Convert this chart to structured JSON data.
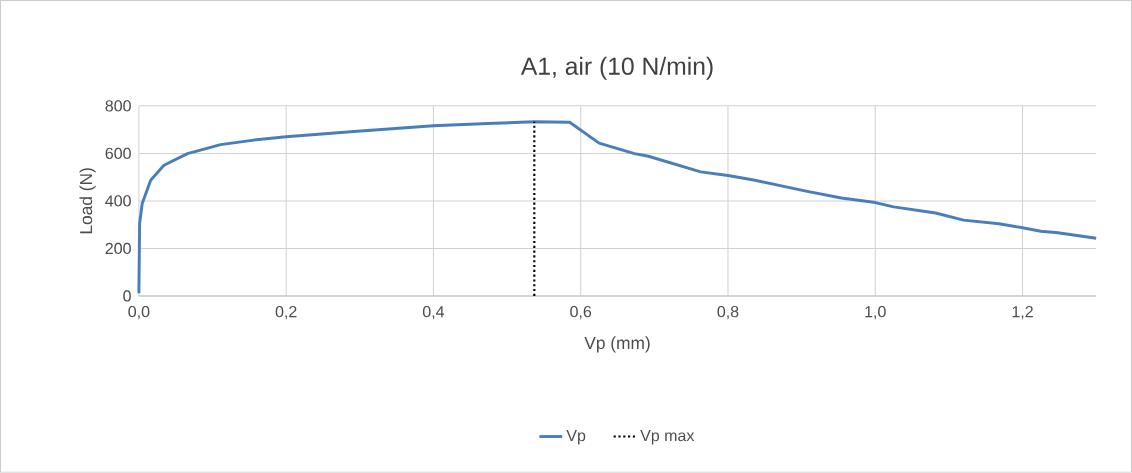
{
  "chart_data": {
    "type": "line",
    "title": "A1, air (10 N/min)",
    "xlabel": "Vp (mm)",
    "ylabel": "Load (N)",
    "xlim": [
      0,
      1.3
    ],
    "ylim": [
      0,
      800
    ],
    "xticks": [
      {
        "value": 0,
        "label": "0,0"
      },
      {
        "value": 0.2,
        "label": "0,2"
      },
      {
        "value": 0.4,
        "label": "0,4"
      },
      {
        "value": 0.6,
        "label": "0,6"
      },
      {
        "value": 0.8,
        "label": "0,8"
      },
      {
        "value": 1.0,
        "label": "1,0"
      },
      {
        "value": 1.2,
        "label": "1,2"
      }
    ],
    "yticks": [
      0,
      200,
      400,
      600,
      800
    ],
    "grid": true,
    "legend": "bottom",
    "marker": "none",
    "series": [
      {
        "name": "Vp",
        "color": "#4a7ebb",
        "line_style": "solid",
        "x": [
          0,
          0.001,
          0.0045,
          0.016,
          0.034,
          0.066,
          0.111,
          0.156,
          0.2,
          0.292,
          0.4,
          0.474,
          0.537,
          0.585,
          0.625,
          0.673,
          0.692,
          0.763,
          0.8,
          0.835,
          0.906,
          0.954,
          1.0,
          1.025,
          1.082,
          1.12,
          1.168,
          1.2,
          1.225,
          1.248,
          1.3
        ],
        "values": [
          11,
          305,
          389,
          487,
          550,
          599,
          637,
          656,
          670,
          692,
          716,
          726,
          733,
          731,
          643,
          599,
          588,
          522,
          507,
          488,
          441,
          412,
          393,
          375,
          349,
          319,
          304,
          287,
          272,
          266,
          243
        ]
      },
      {
        "name": "Vp max",
        "color": "#000000",
        "line_style": "dotted",
        "x": [
          0.537,
          0.537
        ],
        "values": [
          0,
          733
        ]
      }
    ]
  }
}
